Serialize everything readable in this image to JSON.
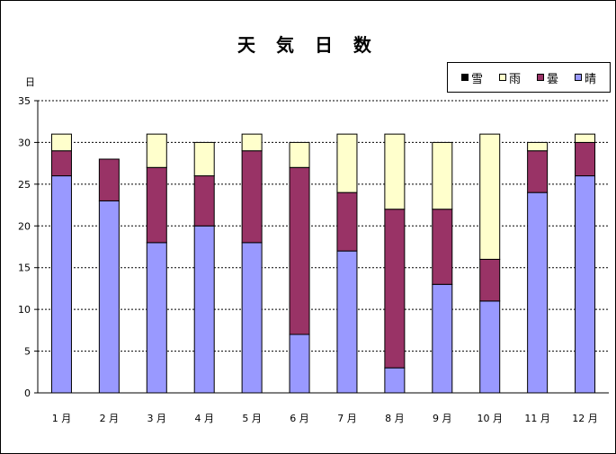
{
  "chart_data": {
    "type": "bar",
    "stacked": true,
    "title": "天 気 日 数",
    "ylabel": "日",
    "xlabel": "",
    "ylim": [
      0,
      35
    ],
    "ytick_step": 5,
    "yticks": [
      "0",
      "5",
      "10",
      "15",
      "20",
      "25",
      "30",
      "35"
    ],
    "grid": "horizontal dashed",
    "legend_position": "top-right",
    "categories": [
      "1 月",
      "2 月",
      "3 月",
      "4 月",
      "5 月",
      "6 月",
      "7 月",
      "8 月",
      "9 月",
      "10 月",
      "11 月",
      "12 月"
    ],
    "series": [
      {
        "name": "晴",
        "color": "#9999ff",
        "values": [
          26,
          23,
          18,
          20,
          18,
          7,
          17,
          3,
          13,
          11,
          24,
          26
        ]
      },
      {
        "name": "曇",
        "color": "#993366",
        "values": [
          3,
          5,
          9,
          6,
          11,
          20,
          7,
          19,
          9,
          5,
          5,
          4
        ]
      },
      {
        "name": "雨",
        "color": "#ffffcc",
        "values": [
          2,
          0,
          4,
          4,
          2,
          3,
          7,
          9,
          8,
          15,
          1,
          1
        ]
      },
      {
        "name": "雪",
        "color": "#000000",
        "values": [
          0,
          0,
          0,
          0,
          0,
          0,
          0,
          0,
          0,
          0,
          0,
          0
        ]
      }
    ],
    "legend_order": [
      "雪",
      "雨",
      "曇",
      "晴"
    ]
  }
}
